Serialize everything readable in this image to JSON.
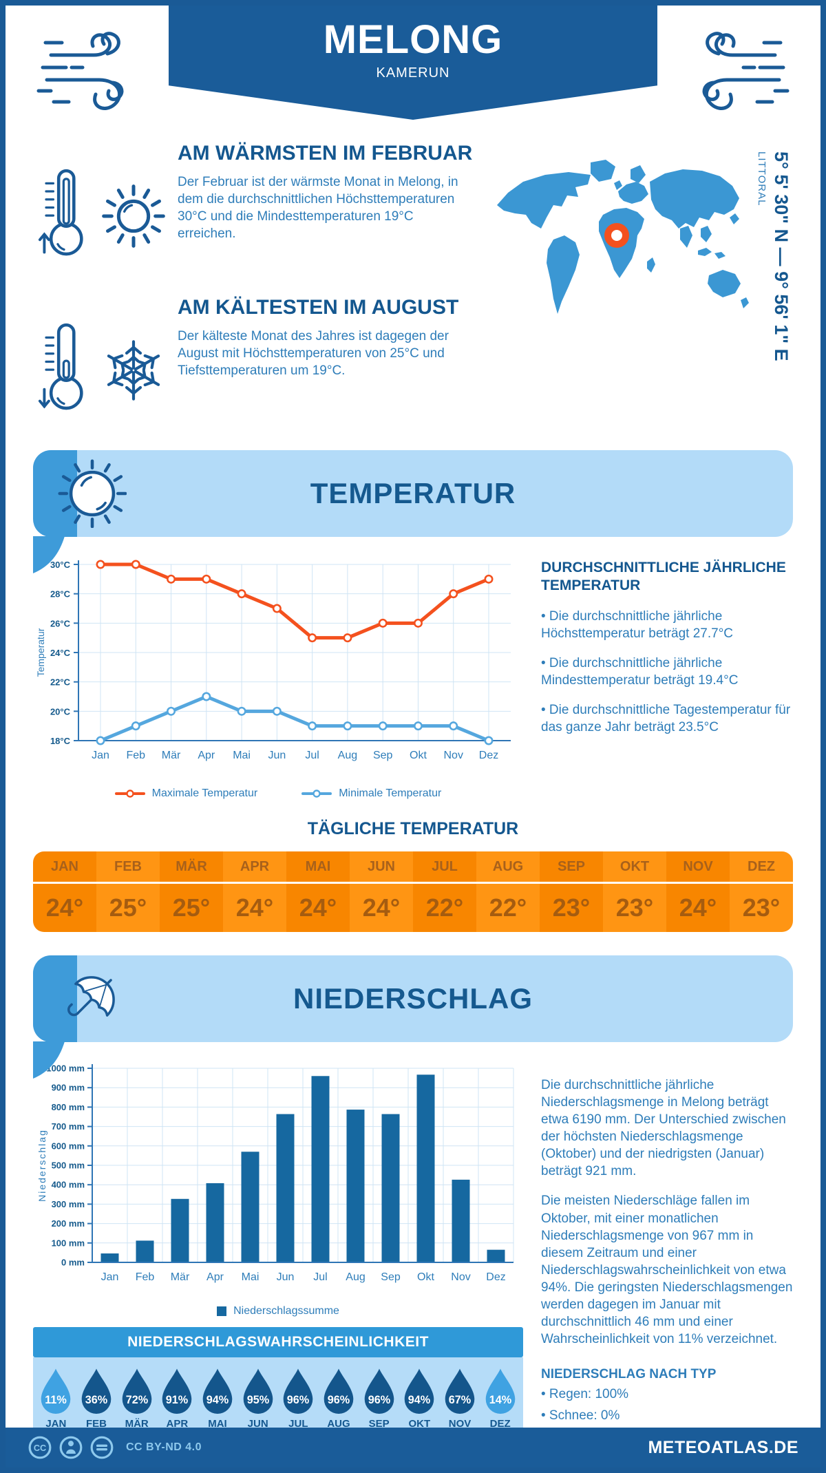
{
  "header": {
    "title": "MELONG",
    "subtitle": "KAMERUN"
  },
  "warmest": {
    "heading": "AM WÄRMSTEN IM FEBRUAR",
    "text": "Der Februar ist der wärmste Monat in Melong, in dem die durchschnittlichen Höchsttemperaturen 30°C und die Mindesttemperaturen 19°C erreichen."
  },
  "coldest": {
    "heading": "AM KÄLTESTEN IM AUGUST",
    "text": "Der kälteste Monat des Jahres ist dagegen der August mit Höchsttemperaturen von 25°C und Tiefsttemperaturen um 19°C."
  },
  "map": {
    "region": "LITTORAL",
    "coordinates": "5° 5' 30\" N — 9° 56' 1\" E"
  },
  "temperature_section": {
    "banner": "TEMPERATUR",
    "aside": {
      "heading": "DURCHSCHNITTLICHE JÄHRLICHE TEMPERATUR",
      "bullets": [
        "• Die durchschnittliche jährliche Höchsttemperatur beträgt 27.7°C",
        "• Die durchschnittliche jährliche Mindesttemperatur beträgt 19.4°C",
        "• Die durchschnittliche Tagestemperatur für das ganze Jahr beträgt 23.5°C"
      ]
    },
    "daily": {
      "heading": "TÄGLICHE TEMPERATUR",
      "months": [
        "JAN",
        "FEB",
        "MÄR",
        "APR",
        "MAI",
        "JUN",
        "JUL",
        "AUG",
        "SEP",
        "OKT",
        "NOV",
        "DEZ"
      ],
      "values": [
        "24°",
        "25°",
        "25°",
        "24°",
        "24°",
        "24°",
        "22°",
        "22°",
        "23°",
        "23°",
        "24°",
        "23°"
      ]
    }
  },
  "precipitation_section": {
    "banner": "NIEDERSCHLAG",
    "paragraphs": [
      "Die durchschnittliche jährliche Niederschlagsmenge in Melong beträgt etwa 6190 mm. Der Unterschied zwischen der höchsten Niederschlagsmenge (Oktober) und der niedrigsten (Januar) beträgt 921 mm.",
      "Die meisten Niederschläge fallen im Oktober, mit einer monatlichen Niederschlagsmenge von 967 mm in diesem Zeitraum und einer Niederschlagswahrscheinlichkeit von etwa 94%. Die geringsten Niederschlagsmengen werden dagegen im Januar mit durchschnittlich 46 mm und einer Wahrscheinlichkeit von 11% verzeichnet."
    ],
    "type_heading": "NIEDERSCHLAG NACH TYP",
    "type_bullets": [
      "• Regen: 100%",
      "• Schnee: 0%"
    ],
    "probability": {
      "heading": "NIEDERSCHLAGSWAHRSCHEINLICHKEIT",
      "months": [
        "JAN",
        "FEB",
        "MÄR",
        "APR",
        "MAI",
        "JUN",
        "JUL",
        "AUG",
        "SEP",
        "OKT",
        "NOV",
        "DEZ"
      ],
      "values": [
        "11%",
        "36%",
        "72%",
        "91%",
        "94%",
        "95%",
        "96%",
        "96%",
        "96%",
        "94%",
        "67%",
        "14%"
      ],
      "light_indices": [
        0,
        11
      ],
      "light_color": "#3fa2e2",
      "dark_color": "#14568c"
    }
  },
  "footer": {
    "license": "CC BY-ND 4.0",
    "site": "METEOATLAS.DE"
  },
  "colors": {
    "accent_orange": "#f4511e",
    "dark_blue": "#1a5a96",
    "map_blue": "#3b97d3",
    "band_light": "#b3dbf8",
    "band_medium": "#3e9bd9"
  },
  "chart_data": [
    {
      "type": "line",
      "x": [
        "Jan",
        "Feb",
        "Mär",
        "Apr",
        "Mai",
        "Jun",
        "Jul",
        "Aug",
        "Sep",
        "Okt",
        "Nov",
        "Dez"
      ],
      "ylabel": "Temperatur",
      "ylim": [
        18,
        30
      ],
      "ytick_step": 2,
      "ytick_suffix": "°C",
      "grid": true,
      "legend_position": "bottom",
      "series": [
        {
          "name": "Maximale Temperatur",
          "color": "#f4511e",
          "values": [
            30,
            30,
            29,
            29,
            28,
            27,
            25,
            25,
            26,
            26,
            28,
            29
          ]
        },
        {
          "name": "Minimale Temperatur",
          "color": "#55a7de",
          "values": [
            18,
            19,
            20,
            21,
            20,
            20,
            19,
            19,
            19,
            19,
            19,
            18
          ]
        }
      ]
    },
    {
      "type": "bar",
      "x": [
        "Jan",
        "Feb",
        "Mär",
        "Apr",
        "Mai",
        "Jun",
        "Jul",
        "Aug",
        "Sep",
        "Okt",
        "Nov",
        "Dez"
      ],
      "ylabel": "Niederschlag",
      "ylim": [
        0,
        1000
      ],
      "ytick_step": 100,
      "ytick_suffix": " mm",
      "grid": true,
      "legend_position": "bottom",
      "series": [
        {
          "name": "Niederschlagssumme",
          "color": "#1668a0",
          "values": [
            46,
            112,
            327,
            408,
            570,
            764,
            960,
            787,
            764,
            967,
            426,
            65
          ]
        }
      ]
    }
  ]
}
